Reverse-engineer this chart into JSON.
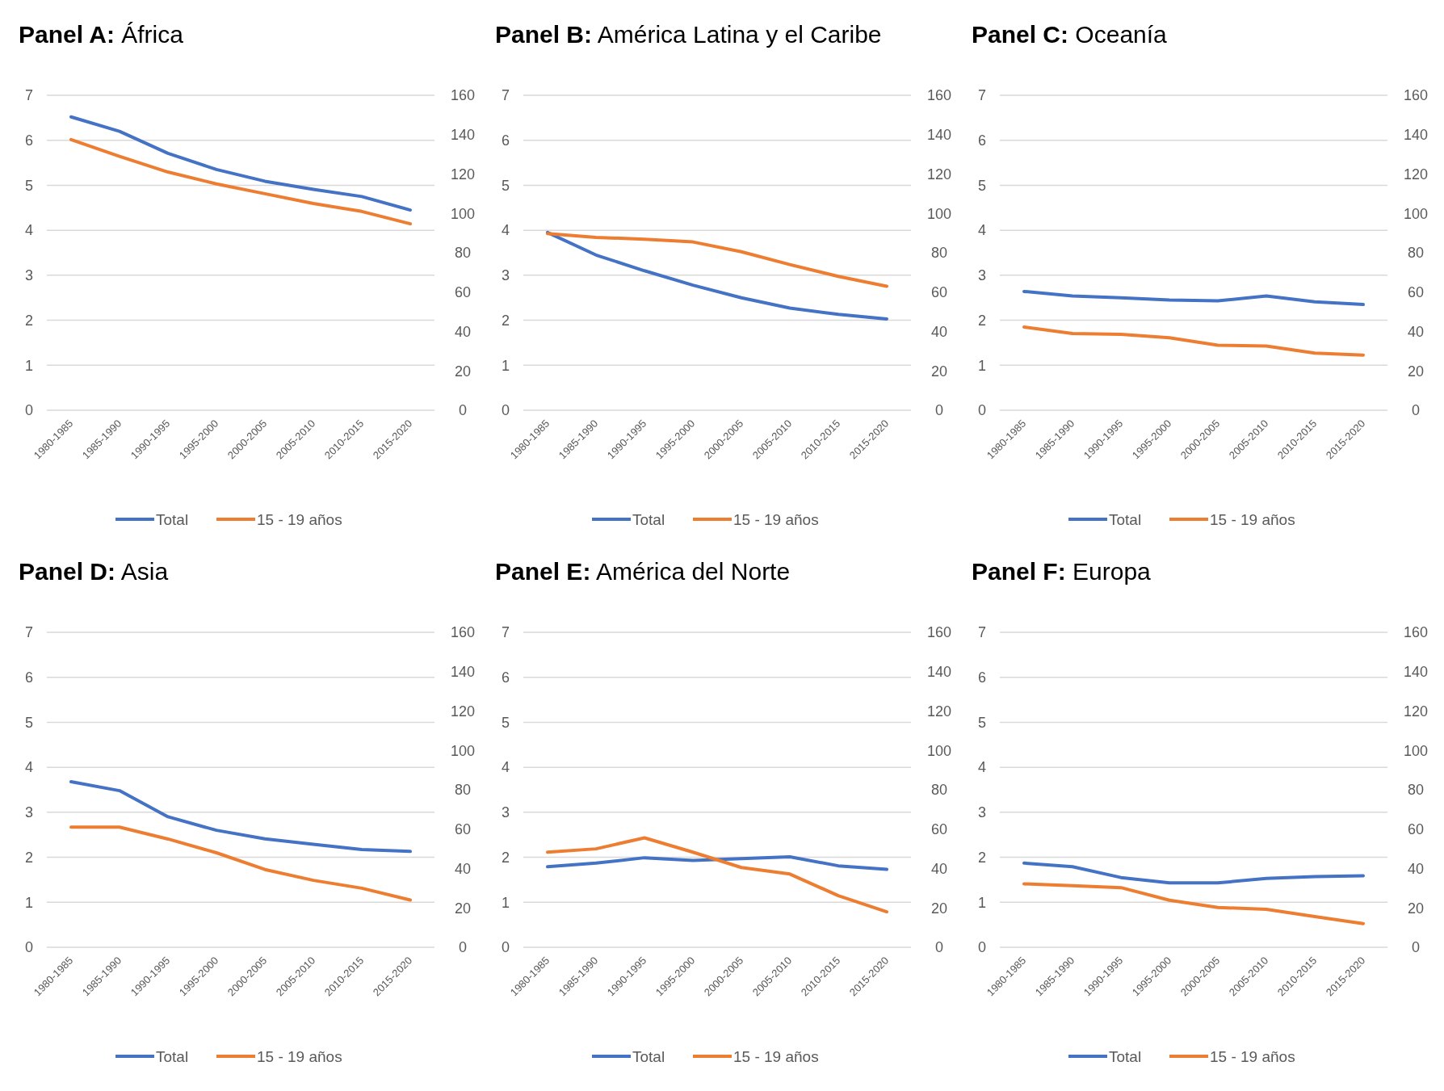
{
  "chart_data": [
    {
      "type": "line",
      "title": "Panel A: África",
      "categories": [
        "1980-1985",
        "1985-1990",
        "1990-1995",
        "1995-2000",
        "2000-2005",
        "2005-2010",
        "2010-2015",
        "2015-2020"
      ],
      "ylim": [
        0,
        7
      ],
      "yticks": [
        0,
        1,
        2,
        3,
        4,
        5,
        6,
        7
      ],
      "y2lim": [
        0,
        160
      ],
      "y2ticks": [
        0,
        20,
        40,
        60,
        80,
        100,
        120,
        140,
        160
      ],
      "grid": "y",
      "legend": "bottom",
      "series": [
        {
          "name": "Total",
          "color": "#4472c4",
          "values": [
            6.52,
            6.2,
            5.71,
            5.35,
            5.09,
            4.91,
            4.75,
            4.45
          ]
        },
        {
          "name": "15 - 19 años",
          "color": "#ed7d31",
          "axis": "y2",
          "values": [
            137.5,
            129,
            121,
            115,
            110,
            105,
            101,
            94.7
          ]
        }
      ]
    },
    {
      "type": "line",
      "title": "Panel B: América Latina y el Caribe",
      "categories": [
        "1980-1985",
        "1985-1990",
        "1990-1995",
        "1995-2000",
        "2000-2005",
        "2005-2010",
        "2010-2015",
        "2015-2020"
      ],
      "ylim": [
        0,
        7
      ],
      "yticks": [
        0,
        1,
        2,
        3,
        4,
        5,
        6,
        7
      ],
      "y2lim": [
        0,
        160
      ],
      "y2ticks": [
        0,
        20,
        40,
        60,
        80,
        100,
        120,
        140,
        160
      ],
      "grid": "y",
      "legend": "bottom",
      "series": [
        {
          "name": "Total",
          "color": "#4472c4",
          "values": [
            3.95,
            3.45,
            3.1,
            2.78,
            2.5,
            2.27,
            2.13,
            2.03
          ]
        },
        {
          "name": "15 - 19 años",
          "color": "#ed7d31",
          "axis": "y2",
          "values": [
            89.7,
            87.8,
            86.9,
            85.5,
            80.5,
            74,
            68,
            63
          ]
        }
      ]
    },
    {
      "type": "line",
      "title": "Panel C: Oceanía",
      "categories": [
        "1980-1985",
        "1985-1990",
        "1990-1995",
        "1995-2000",
        "2000-2005",
        "2005-2010",
        "2010-2015",
        "2015-2020"
      ],
      "ylim": [
        0,
        7
      ],
      "yticks": [
        0,
        1,
        2,
        3,
        4,
        5,
        6,
        7
      ],
      "y2lim": [
        0,
        160
      ],
      "y2ticks": [
        0,
        20,
        40,
        60,
        80,
        100,
        120,
        140,
        160
      ],
      "grid": "y",
      "legend": "bottom",
      "series": [
        {
          "name": "Total",
          "color": "#4472c4",
          "values": [
            2.64,
            2.54,
            2.5,
            2.45,
            2.43,
            2.54,
            2.41,
            2.35
          ]
        },
        {
          "name": "15 - 19 años",
          "color": "#ed7d31",
          "axis": "y2",
          "values": [
            42.3,
            39,
            38.6,
            36.8,
            33,
            32.6,
            29,
            28
          ]
        }
      ]
    },
    {
      "type": "line",
      "title": "Panel D: Asia",
      "categories": [
        "1980-1985",
        "1985-1990",
        "1990-1995",
        "1995-2000",
        "2000-2005",
        "2005-2010",
        "2010-2015",
        "2015-2020"
      ],
      "ylim": [
        0,
        7
      ],
      "yticks": [
        0,
        1,
        2,
        3,
        4,
        5,
        6,
        7
      ],
      "y2lim": [
        0,
        160
      ],
      "y2ticks": [
        0,
        20,
        40,
        60,
        80,
        100,
        120,
        140,
        160
      ],
      "grid": "y",
      "legend": "bottom",
      "series": [
        {
          "name": "Total",
          "color": "#4472c4",
          "values": [
            3.68,
            3.48,
            2.9,
            2.6,
            2.41,
            2.29,
            2.17,
            2.13
          ]
        },
        {
          "name": "15 - 19 años",
          "color": "#ed7d31",
          "axis": "y2",
          "values": [
            61,
            61,
            55,
            48,
            39.5,
            34,
            30,
            24
          ]
        }
      ]
    },
    {
      "type": "line",
      "title": "Panel E: América del Norte",
      "categories": [
        "1980-1985",
        "1985-1990",
        "1990-1995",
        "1995-2000",
        "2000-2005",
        "2005-2010",
        "2010-2015",
        "2015-2020"
      ],
      "ylim": [
        0,
        7
      ],
      "yticks": [
        0,
        1,
        2,
        3,
        4,
        5,
        6,
        7
      ],
      "y2lim": [
        0,
        160
      ],
      "y2ticks": [
        0,
        20,
        40,
        60,
        80,
        100,
        120,
        140,
        160
      ],
      "grid": "y",
      "legend": "bottom",
      "series": [
        {
          "name": "Total",
          "color": "#4472c4",
          "values": [
            1.79,
            1.87,
            1.99,
            1.93,
            1.97,
            2.01,
            1.81,
            1.73
          ]
        },
        {
          "name": "15 - 19 años",
          "color": "#ed7d31",
          "axis": "y2",
          "values": [
            48.3,
            50,
            55.6,
            48.3,
            40.5,
            37.2,
            26.2,
            18
          ]
        }
      ]
    },
    {
      "type": "line",
      "title": "Panel F: Europa",
      "categories": [
        "1980-1985",
        "1985-1990",
        "1990-1995",
        "1995-2000",
        "2000-2005",
        "2005-2010",
        "2010-2015",
        "2015-2020"
      ],
      "ylim": [
        0,
        7
      ],
      "yticks": [
        0,
        1,
        2,
        3,
        4,
        5,
        6,
        7
      ],
      "y2lim": [
        0,
        160
      ],
      "y2ticks": [
        0,
        20,
        40,
        60,
        80,
        100,
        120,
        140,
        160
      ],
      "grid": "y",
      "legend": "bottom",
      "series": [
        {
          "name": "Total",
          "color": "#4472c4",
          "values": [
            1.87,
            1.79,
            1.55,
            1.43,
            1.43,
            1.53,
            1.57,
            1.59
          ]
        },
        {
          "name": "15 - 19 años",
          "color": "#ed7d31",
          "axis": "y2",
          "values": [
            32.2,
            31.3,
            30.3,
            23.9,
            20.2,
            19.3,
            15.6,
            12
          ]
        }
      ]
    }
  ]
}
